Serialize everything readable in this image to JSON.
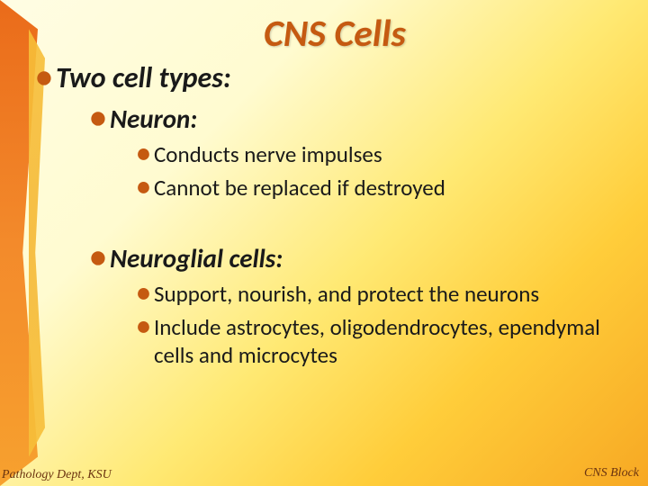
{
  "title": "CNS Cells",
  "heading": "Two cell types:",
  "sections": [
    {
      "label": "Neuron:",
      "points": [
        "Conducts nerve impulses",
        "Cannot be replaced if destroyed"
      ]
    },
    {
      "label": "Neuroglial cells:",
      "points": [
        "Support, nourish, and protect the neurons",
        "Include astrocytes, oligodendrocytes, ependymal cells and microcytes"
      ]
    }
  ],
  "footer_left": "Pathology Dept, KSU",
  "footer_right": "CNS Block",
  "colors": {
    "accent": "#c55a11",
    "text": "#1a1a1a",
    "ribbon": "#ea6b1a",
    "bg_light": "#fffde4",
    "bg_dark": "#f7a823"
  },
  "typography": {
    "title_fontsize": 42,
    "h1_fontsize": 32,
    "h2_fontsize": 29,
    "body_fontsize": 25
  }
}
